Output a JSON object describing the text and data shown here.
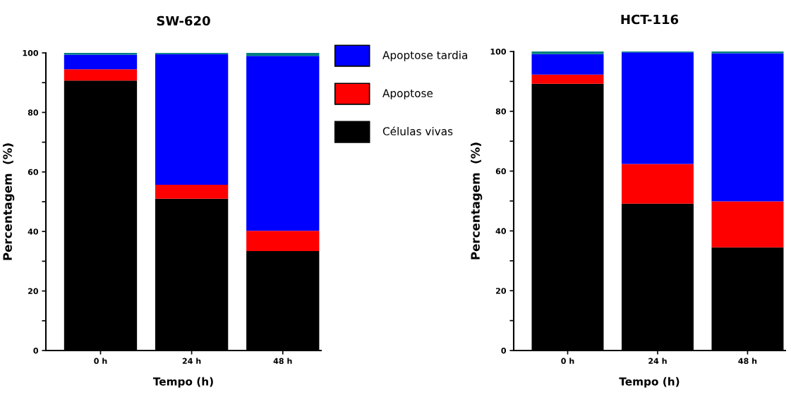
{
  "chart_data": [
    {
      "type": "bar",
      "title": "SW-620",
      "xlabel": "Tempo (h)",
      "ylabel": "Percentagem  (%)",
      "stacked": true,
      "legend": "right",
      "categories": [
        "0 h",
        "24 h",
        "48 h"
      ],
      "ylim": [
        0,
        100
      ],
      "yticks": [
        0,
        {
          "value": 10,
          "label": null
        },
        20,
        {
          "value": 30,
          "label": null
        },
        40,
        {
          "value": 50,
          "label": null
        },
        60,
        {
          "value": 70,
          "label": null
        },
        80,
        {
          "value": 90,
          "label": null
        },
        100
      ],
      "series": [
        {
          "name": "Células vivas",
          "color": "#000000",
          "values": [
            90.7,
            51.0,
            33.4
          ]
        },
        {
          "name": "Apoptose",
          "color": "#ff0000",
          "values": [
            3.8,
            4.7,
            6.8
          ]
        },
        {
          "name": "Apoptose tardia",
          "color": "#0000ff",
          "values": [
            4.9,
            43.9,
            58.8
          ]
        },
        {
          "color": "#008080",
          "values": [
            0.6,
            0.4,
            1.0
          ]
        }
      ]
    },
    {
      "type": "bar",
      "title": "HCT-116",
      "xlabel": "Tempo (h)",
      "ylabel": "Percentagem  (%)",
      "stacked": true,
      "categories": [
        "0 h",
        "24 h",
        "48 h"
      ],
      "ylim": [
        0,
        100
      ],
      "yticks": [
        0,
        {
          "value": 10,
          "label": null
        },
        20,
        {
          "value": 30,
          "label": null
        },
        40,
        {
          "value": 50,
          "label": null
        },
        60,
        {
          "value": 70,
          "label": null
        },
        80,
        {
          "value": 90,
          "label": null
        },
        100
      ],
      "series": [
        {
          "color": "#000000",
          "values": [
            89.2,
            49.1,
            34.5
          ]
        },
        {
          "color": "#ff0000",
          "values": [
            3.1,
            13.3,
            15.4
          ]
        },
        {
          "color": "#0000ff",
          "values": [
            6.8,
            37.3,
            49.5
          ]
        },
        {
          "color": "#008080",
          "values": [
            0.9,
            0.3,
            0.6
          ]
        }
      ]
    }
  ]
}
